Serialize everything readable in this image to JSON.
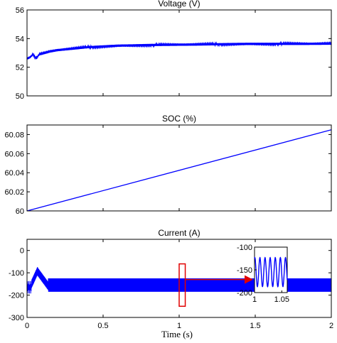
{
  "chart_data": [
    {
      "type": "line",
      "title": "Voltage (V)",
      "xlim": [
        0,
        2
      ],
      "ylim": [
        50,
        56
      ],
      "yticks": [
        "50",
        "52",
        "54",
        "56"
      ],
      "color": "#0000ff",
      "series": [
        {
          "x": [
            0,
            0.02,
            0.04,
            0.06,
            0.08,
            0.1,
            0.15,
            0.2,
            0.3,
            0.4,
            0.5,
            0.6,
            0.7,
            0.8,
            1.0,
            1.2,
            1.4,
            1.6,
            1.8,
            2.0
          ],
          "values": [
            52.6,
            52.7,
            52.9,
            52.6,
            52.9,
            52.95,
            53.1,
            53.2,
            53.3,
            53.4,
            53.45,
            53.5,
            53.52,
            53.55,
            53.58,
            53.6,
            53.62,
            53.63,
            53.64,
            53.65
          ]
        }
      ]
    },
    {
      "type": "line",
      "title": "SOC (%)",
      "xlim": [
        0,
        2
      ],
      "ylim": [
        60,
        60.09
      ],
      "yticks": [
        "60",
        "60.02",
        "60.04",
        "60.06",
        "60.08"
      ],
      "color": "#0000ff",
      "series": [
        {
          "x": [
            0,
            2
          ],
          "values": [
            60.0,
            60.085
          ]
        }
      ]
    },
    {
      "type": "line",
      "title": "Current (A)",
      "xlim": [
        0,
        2
      ],
      "ylim": [
        -300,
        50
      ],
      "yticks": [
        "-300",
        "-200",
        "-100",
        "0"
      ],
      "xticks": [
        "0",
        "0.5",
        "1",
        "1.5",
        "2"
      ],
      "xlabel": "Time (s)",
      "color": "#0000ff",
      "series": [
        {
          "name": "",
          "mean": -155,
          "ripple_amplitude": 30,
          "transient": [
            [
              0,
              -170
            ],
            [
              0.05,
              -150
            ],
            [
              0.08,
              -100
            ],
            [
              0.12,
              -180
            ]
          ]
        }
      ],
      "inset": {
        "xlim": [
          1,
          1.06
        ],
        "ylim": [
          -200,
          -100
        ],
        "xticks": [
          "1",
          "1.05"
        ],
        "yticks": [
          "-100",
          "-150",
          "-200"
        ],
        "highlight_range": [
          1.0,
          1.04
        ]
      }
    }
  ]
}
